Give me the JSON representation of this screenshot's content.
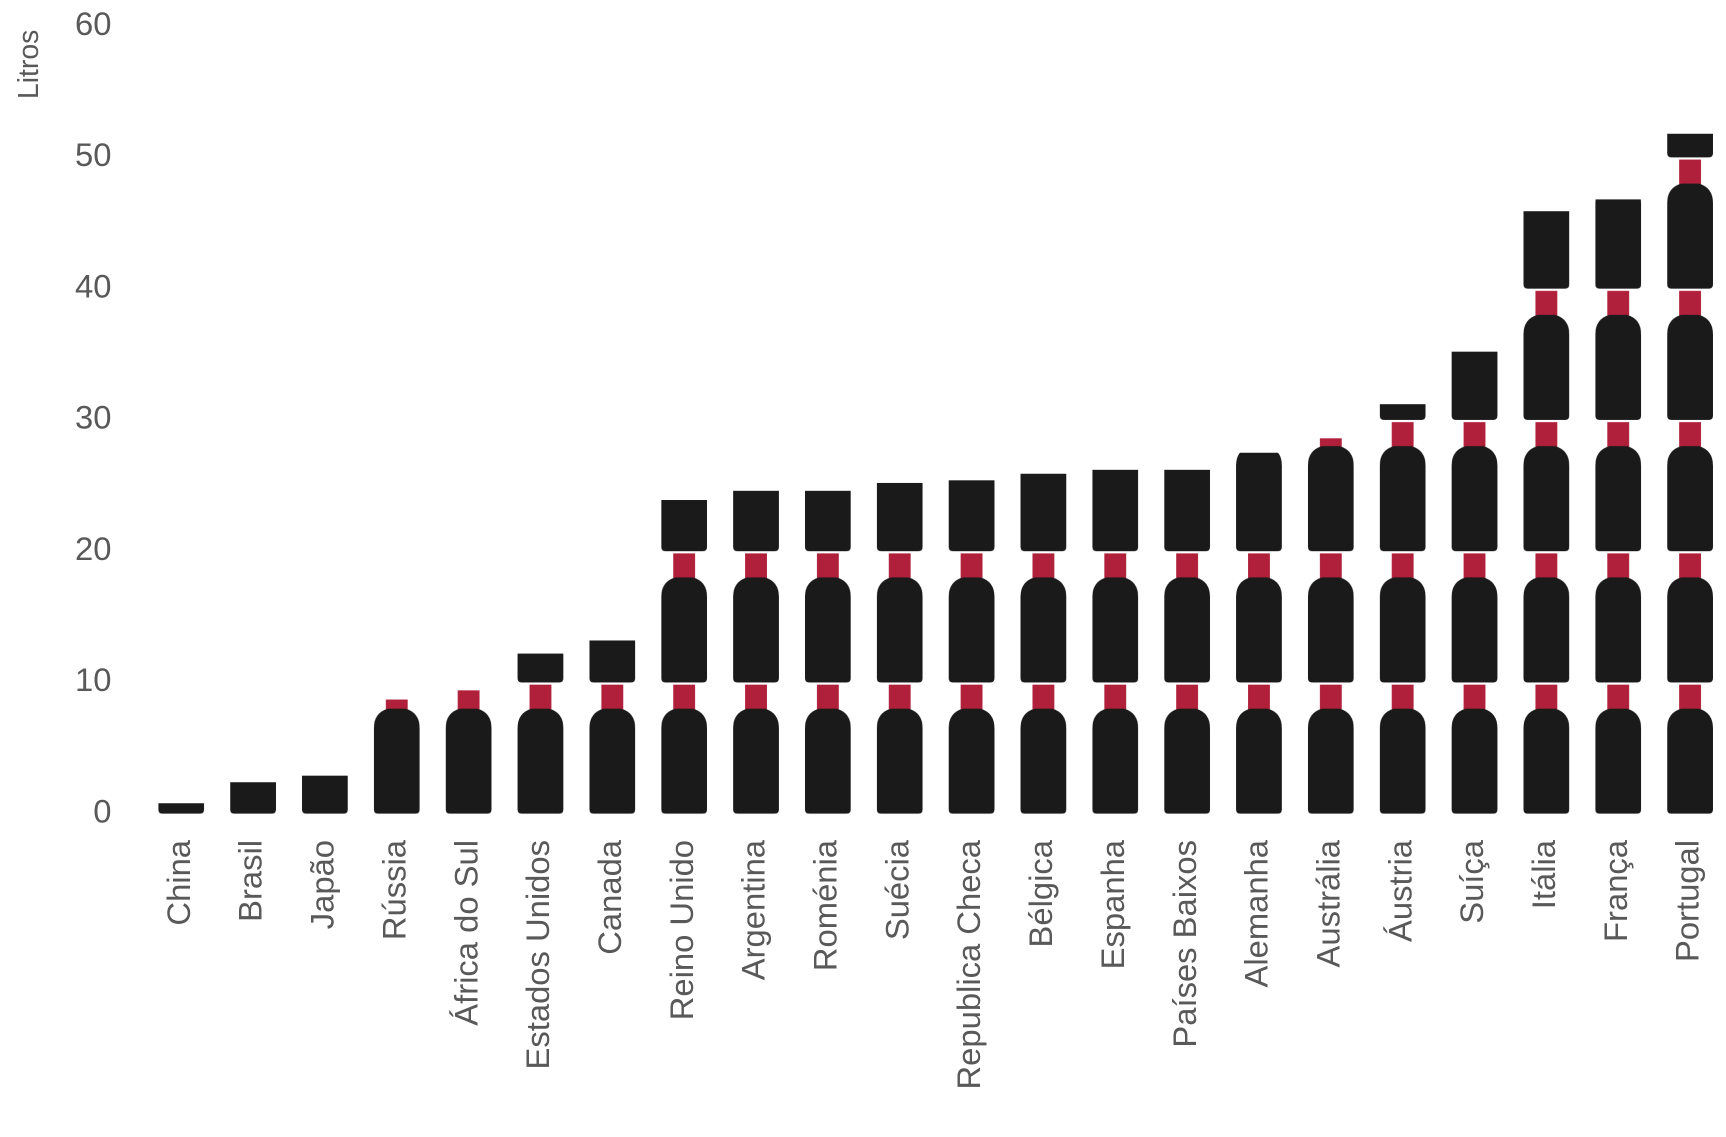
{
  "chart_data": {
    "type": "bar",
    "y_label": "Litros",
    "color": "#1a1a1a",
    "categories": [
      "China",
      "Brasil",
      "Japão",
      "Rússia",
      "África do Sul",
      "Estados Unidos",
      "Canada",
      "Reino Unido",
      "Argentina",
      "Roménia",
      "Suécia",
      "Republica Checa",
      "Bélgica",
      "Espanha",
      "Países Baixos",
      "Alemanha",
      "Austrália",
      "Áustria",
      "Suíça",
      "Itália",
      "França",
      "Portugal"
    ],
    "values": [
      0.8,
      2.4,
      2.9,
      8.7,
      9.4,
      12.2,
      13.2,
      23.9,
      24.6,
      24.6,
      25.2,
      25.4,
      25.9,
      26.2,
      26.2,
      27.5,
      28.6,
      31.2,
      35.2,
      45.9,
      46.8,
      51.8
    ],
    "ylim": [
      0,
      60
    ],
    "yticks": [
      0,
      10,
      20,
      30,
      40,
      50,
      60
    ]
  }
}
